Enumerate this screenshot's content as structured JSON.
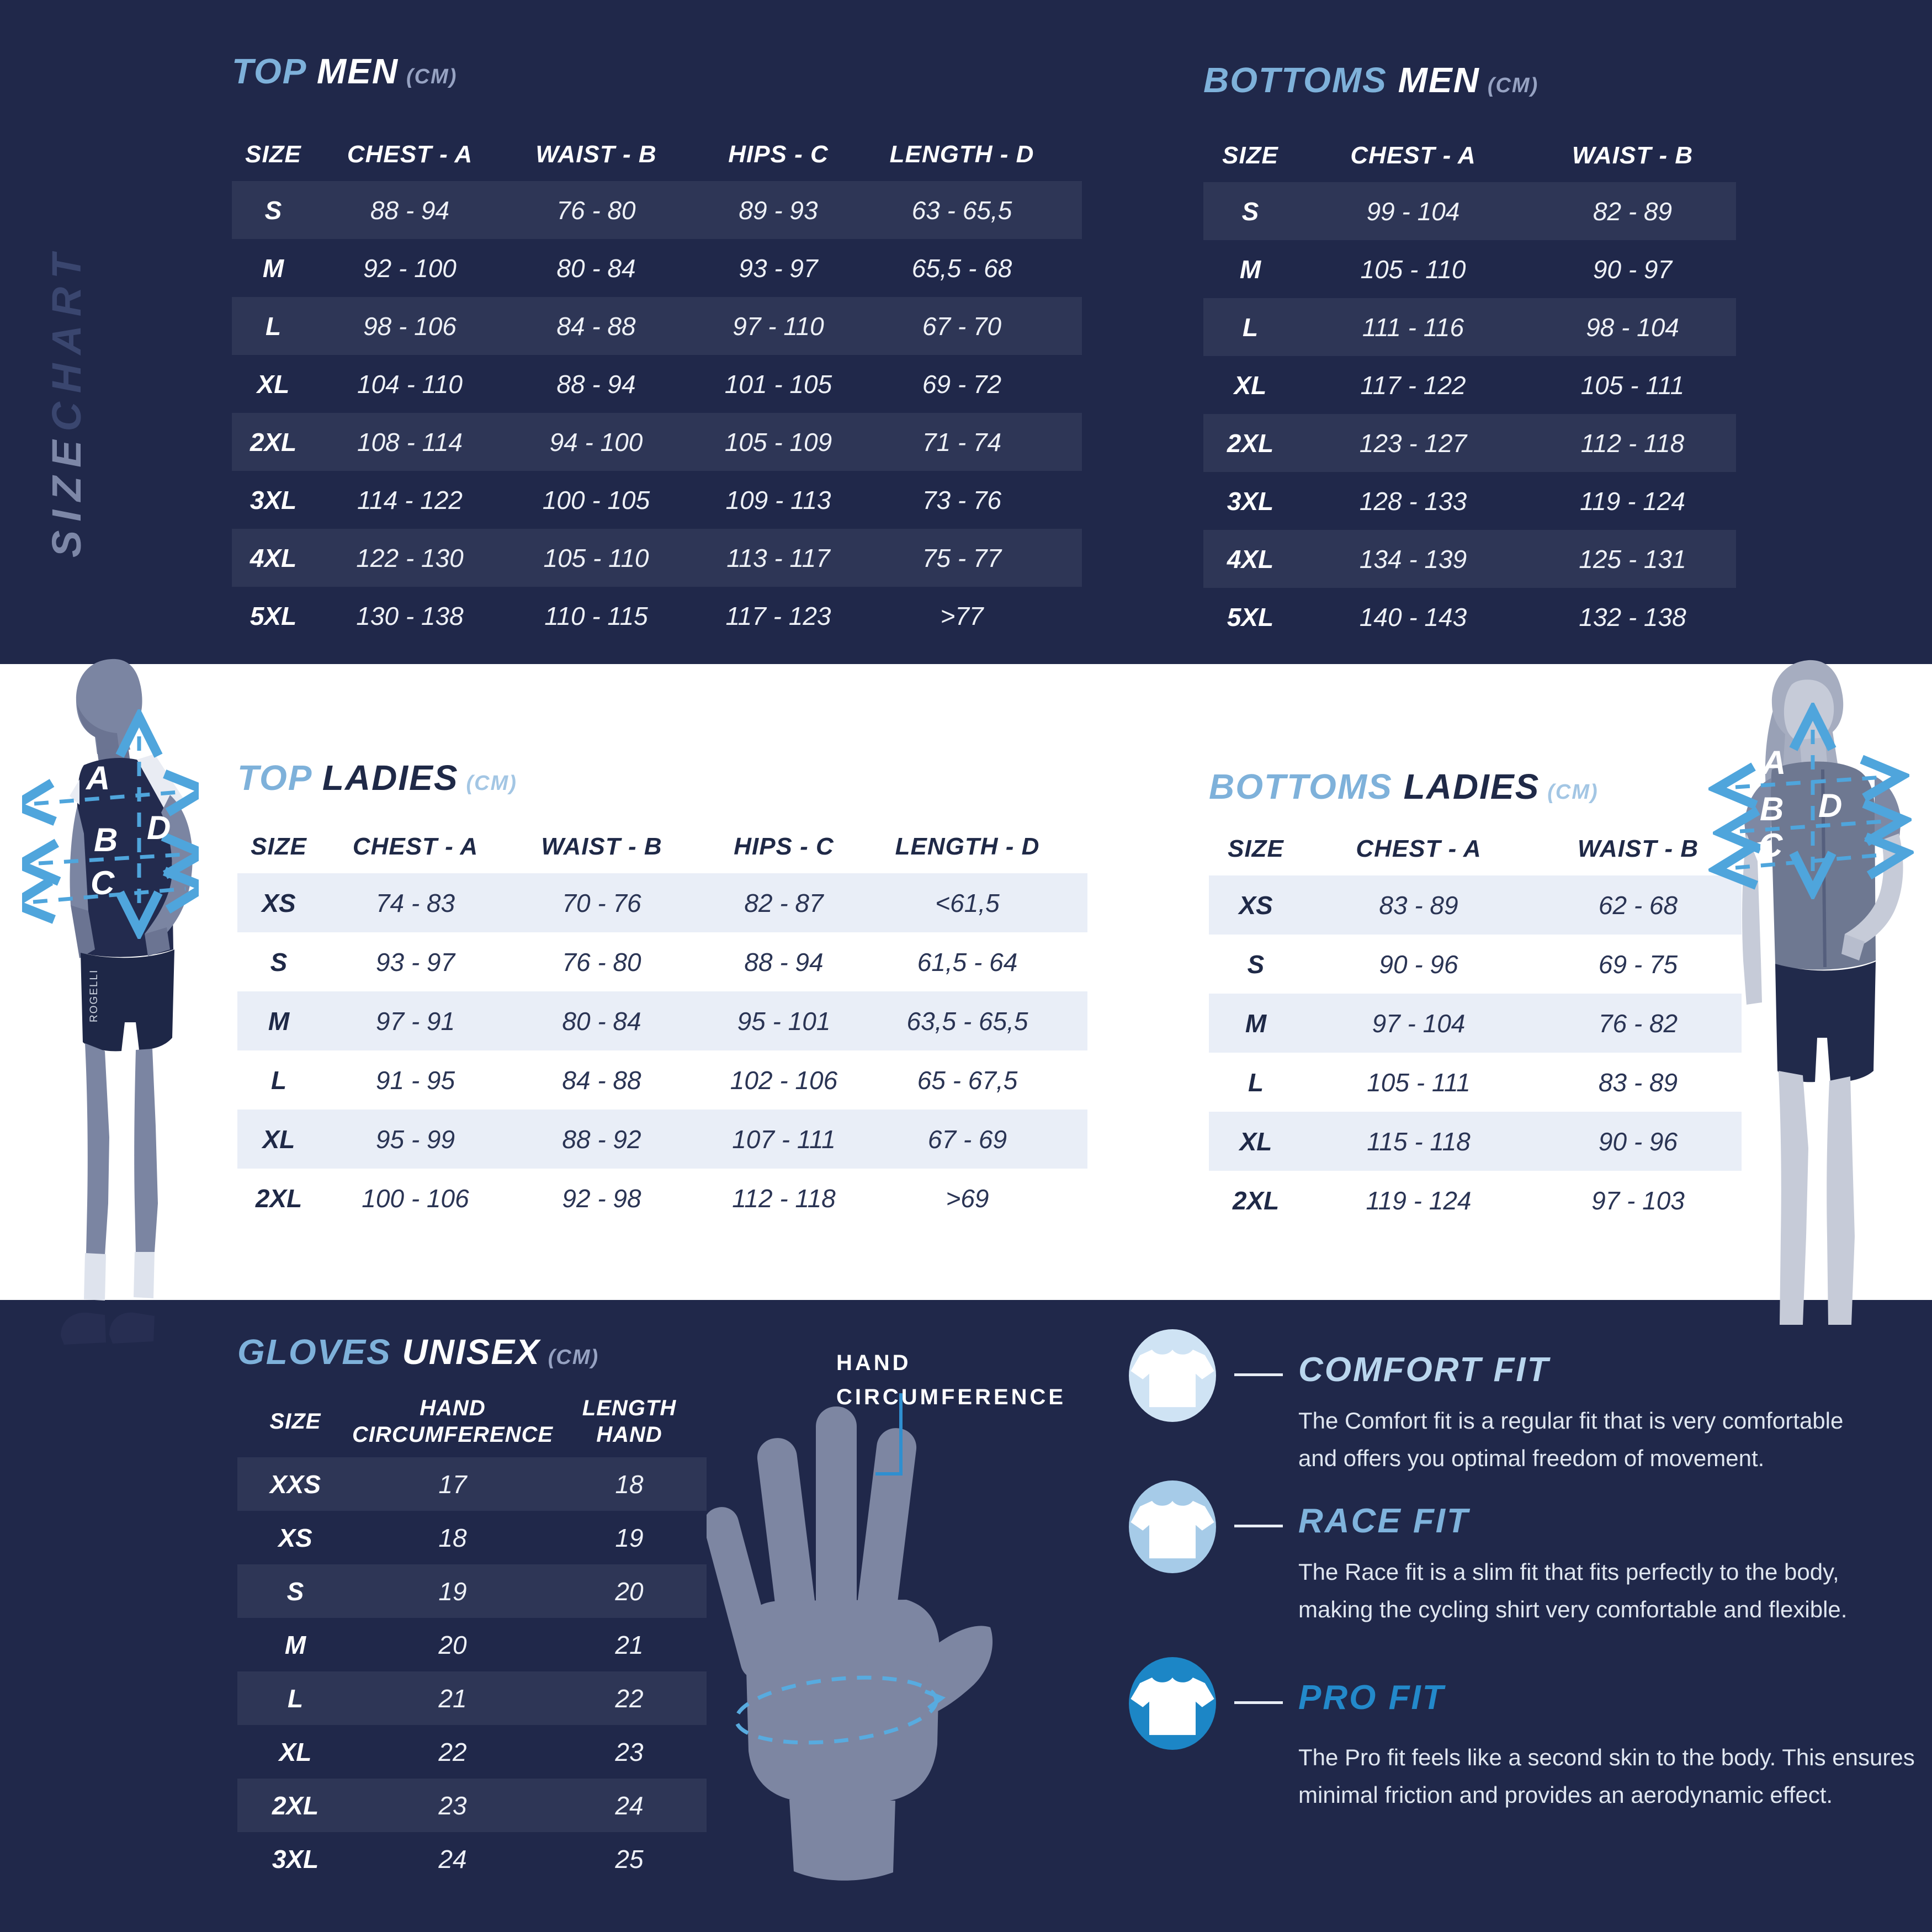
{
  "page": {
    "vertical_title": {
      "size": "SIZE",
      "chart": "CHART"
    }
  },
  "colors": {
    "navy_background": "#20284a",
    "light_section_background": "#ffffff",
    "accent_blue": "#7eb1da",
    "accent_blue_on_light": "#5a9cd2",
    "dashed_line_blue": "#4fa5dc",
    "comfort_circle": "#cfe3f4",
    "race_circle": "#a6cbe8",
    "pro_circle": "#1c86c6",
    "pro_title_blue": "#2389ca",
    "row_shade_light": "#e9eef7"
  },
  "tables": {
    "top_men": {
      "title_accent": "TOP",
      "title_rest": "MEN",
      "unit": "(CM)",
      "headers": [
        "SIZE",
        "CHEST - A",
        "WAIST - B",
        "HIPS - C",
        "LENGTH  - D"
      ],
      "rows": [
        [
          "S",
          "88 - 94",
          "76 - 80",
          "89 - 93",
          "63 - 65,5"
        ],
        [
          "M",
          "92 - 100",
          "80 - 84",
          "93 - 97",
          "65,5 - 68"
        ],
        [
          "L",
          "98 - 106",
          "84 - 88",
          "97 - 110",
          "67 - 70"
        ],
        [
          "XL",
          "104 - 110",
          "88 - 94",
          "101 - 105",
          "69 - 72"
        ],
        [
          "2XL",
          "108 - 114",
          "94 - 100",
          "105 - 109",
          "71 - 74"
        ],
        [
          "3XL",
          "114 - 122",
          "100 - 105",
          "109 - 113",
          "73 - 76"
        ],
        [
          "4XL",
          "122 - 130",
          "105 - 110",
          "113 - 117",
          "75 - 77"
        ],
        [
          "5XL",
          "130 - 138",
          "110 - 115",
          "117 - 123",
          ">77"
        ]
      ]
    },
    "bottoms_men": {
      "title_accent": "BOTTOMS",
      "title_rest": "MEN",
      "unit": "(CM)",
      "headers": [
        "SIZE",
        "CHEST - A",
        "WAIST - B"
      ],
      "rows": [
        [
          "S",
          "99 - 104",
          "82 - 89"
        ],
        [
          "M",
          "105 - 110",
          "90 - 97"
        ],
        [
          "L",
          "111 - 116",
          "98 - 104"
        ],
        [
          "XL",
          "117 - 122",
          "105 - 111"
        ],
        [
          "2XL",
          "123 - 127",
          "112 - 118"
        ],
        [
          "3XL",
          "128 - 133",
          "119 - 124"
        ],
        [
          "4XL",
          "134 - 139",
          "125 - 131"
        ],
        [
          "5XL",
          "140 - 143",
          "132 - 138"
        ]
      ]
    },
    "top_ladies": {
      "title_accent": "TOP",
      "title_rest": "LADIES",
      "unit": "(CM)",
      "headers": [
        "SIZE",
        "CHEST - A",
        "WAIST - B",
        "HIPS - C",
        "LENGTH  - D"
      ],
      "rows": [
        [
          "XS",
          "74 - 83",
          "70 - 76",
          "82 - 87",
          "<61,5"
        ],
        [
          "S",
          "93 - 97",
          "76 - 80",
          "88 - 94",
          "61,5 - 64"
        ],
        [
          "M",
          "97 - 91",
          "80 - 84",
          "95 - 101",
          "63,5 - 65,5"
        ],
        [
          "L",
          "91 - 95",
          "84 - 88",
          "102 - 106",
          "65 - 67,5"
        ],
        [
          "XL",
          "95 - 99",
          "88 - 92",
          "107 - 111",
          "67 - 69"
        ],
        [
          "2XL",
          "100 - 106",
          "92 - 98",
          "112 - 118",
          ">69"
        ]
      ]
    },
    "bottoms_ladies": {
      "title_accent": "BOTTOMS",
      "title_rest": "LADIES",
      "unit": "(CM)",
      "headers": [
        "SIZE",
        "CHEST - A",
        "WAIST - B"
      ],
      "rows": [
        [
          "XS",
          "83 - 89",
          "62 - 68"
        ],
        [
          "S",
          "90 - 96",
          "69 - 75"
        ],
        [
          "M",
          "97 - 104",
          "76 - 82"
        ],
        [
          "L",
          "105 - 111",
          "83 - 89"
        ],
        [
          "XL",
          "115 - 118",
          "90 - 96"
        ],
        [
          "2XL",
          "119 - 124",
          "97 - 103"
        ]
      ]
    },
    "gloves": {
      "title_accent": "GLOVES",
      "title_rest": "UNISEX",
      "unit": "(CM)",
      "headers": [
        "SIZE",
        "HAND\nCIRCUMFERENCE",
        "LENGTH\nHAND"
      ],
      "rows": [
        [
          "XXS",
          "17",
          "18"
        ],
        [
          "XS",
          "18",
          "19"
        ],
        [
          "S",
          "19",
          "20"
        ],
        [
          "M",
          "20",
          "21"
        ],
        [
          "L",
          "21",
          "22"
        ],
        [
          "XL",
          "22",
          "23"
        ],
        [
          "2XL",
          "23",
          "24"
        ],
        [
          "3XL",
          "24",
          "25"
        ]
      ]
    }
  },
  "figures": {
    "man": {
      "labels": [
        "A",
        "B",
        "C",
        "D"
      ],
      "shorts_brand": "ROGELLI"
    },
    "woman": {
      "labels": [
        "A",
        "B",
        "C",
        "D"
      ]
    },
    "hand": {
      "label": "HAND\nCIRCUMFERENCE"
    }
  },
  "fits": [
    {
      "name": "COMFORT FIT",
      "description": "The Comfort fit is a regular fit that is very comfortable\nand offers you optimal freedom of movement."
    },
    {
      "name": "RACE FIT",
      "description": "The Race fit is a slim fit that fits perfectly to the body,\nmaking the cycling shirt very comfortable and flexible."
    },
    {
      "name": "PRO FIT",
      "description": "The Pro fit feels like a second skin to the body. This ensures\nminimal friction and provides an aerodynamic effect."
    }
  ]
}
